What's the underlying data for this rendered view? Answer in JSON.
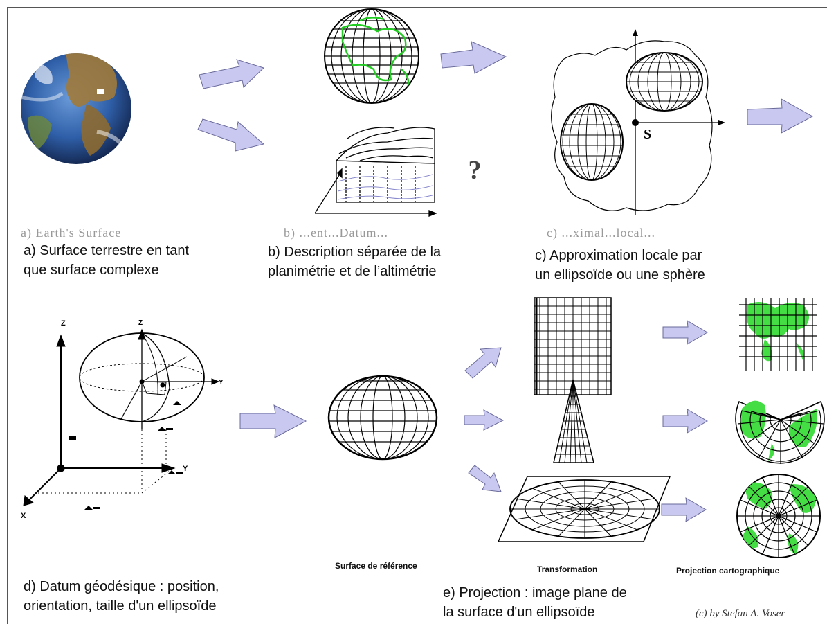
{
  "captions": {
    "a": [
      "a) Surface terrestre en tant",
      "que surface complexe"
    ],
    "b": [
      "b) Description séparée de la",
      "planimétrie et de l’altimétrie"
    ],
    "c": [
      "c) Approximation locale par",
      "un ellipsoïde ou une sphère"
    ],
    "d": [
      "d) Datum géodésique : position,",
      "orientation, taille d'un ellipsoïde"
    ],
    "e": [
      "e) Projection : image plane de",
      "la surface d'un ellipsoïde"
    ]
  },
  "sublabels": {
    "reference": "Surface de référence",
    "transformation": "Transformation",
    "projection": "Projection cartographique"
  },
  "ghost_text": {
    "a": "a) Earth's Surface",
    "b": "b) ...ent...Datum...",
    "c": "c) ...ximal...local..."
  },
  "glyphs": {
    "question_mark": "?",
    "point_s": "S",
    "axis_x": "X",
    "axis_y": "Y",
    "axis_z": "Z"
  },
  "credit": "(c) by Stefan A. Voser",
  "colors": {
    "arrow_fill": "#c8c8f0",
    "arrow_stroke": "#6a6a9a",
    "land_green": "#22cc22",
    "ocean_blue": "#2f63b5",
    "land_brown": "#a07a3a"
  }
}
